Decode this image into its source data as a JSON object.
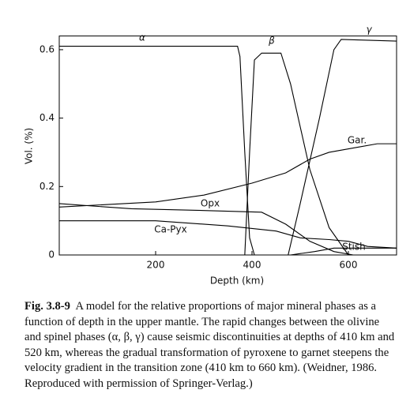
{
  "chart_data": {
    "type": "line",
    "xlabel": "Depth (km)",
    "ylabel": "Vol. (%)",
    "xlim": [
      0,
      700
    ],
    "ylim": [
      0,
      0.64
    ],
    "xticks": [
      200,
      400,
      600
    ],
    "yticks": [
      0,
      0.2,
      0.4,
      0.6
    ],
    "color": "#000000",
    "series": [
      {
        "name": "α",
        "x": [
          0,
          370,
          375,
          385,
          395,
          405
        ],
        "values": [
          0.61,
          0.61,
          0.58,
          0.3,
          0.05,
          0
        ]
      },
      {
        "name": "β",
        "x": [
          385,
          395,
          405,
          420,
          460,
          480,
          520,
          560,
          600
        ],
        "values": [
          0,
          0.3,
          0.57,
          0.59,
          0.59,
          0.5,
          0.25,
          0.08,
          0
        ]
      },
      {
        "name": "γ",
        "x": [
          475,
          500,
          540,
          570,
          585,
          700
        ],
        "values": [
          0,
          0.15,
          0.4,
          0.6,
          0.63,
          0.625
        ]
      },
      {
        "name": "Gar.",
        "x": [
          0,
          200,
          300,
          400,
          470,
          520,
          560,
          620,
          660,
          700
        ],
        "values": [
          0.14,
          0.155,
          0.175,
          0.21,
          0.24,
          0.28,
          0.3,
          0.315,
          0.325,
          0.325
        ]
      },
      {
        "name": "Opx",
        "x": [
          0,
          150,
          300,
          420,
          470,
          520,
          570,
          610
        ],
        "values": [
          0.15,
          0.135,
          0.13,
          0.125,
          0.09,
          0.04,
          0.01,
          0
        ]
      },
      {
        "name": "Ca-Pyx",
        "x": [
          0,
          200,
          350,
          450,
          500,
          560,
          600,
          640,
          700
        ],
        "values": [
          0.1,
          0.1,
          0.085,
          0.07,
          0.05,
          0.045,
          0.04,
          0.025,
          0.02
        ]
      },
      {
        "name": "Stish",
        "x": [
          480,
          530,
          570,
          700
        ],
        "values": [
          0,
          0.01,
          0.02,
          0.02
        ]
      }
    ]
  },
  "caption": {
    "label": "Fig. 3.8-9",
    "text": "A model for the relative proportions of major mineral phases as a function of depth in the upper mantle. The rapid changes between the olivine and spinel phases (α, β, γ) cause seismic discontinuities at depths of 410 km and 520 km, whereas the gradual transformation of pyroxene to garnet steepens the velocity gradient in the transition zone (410 km to 660 km). (Weidner, 1986. Reproduced with permission of Springer-Verlag.)"
  }
}
